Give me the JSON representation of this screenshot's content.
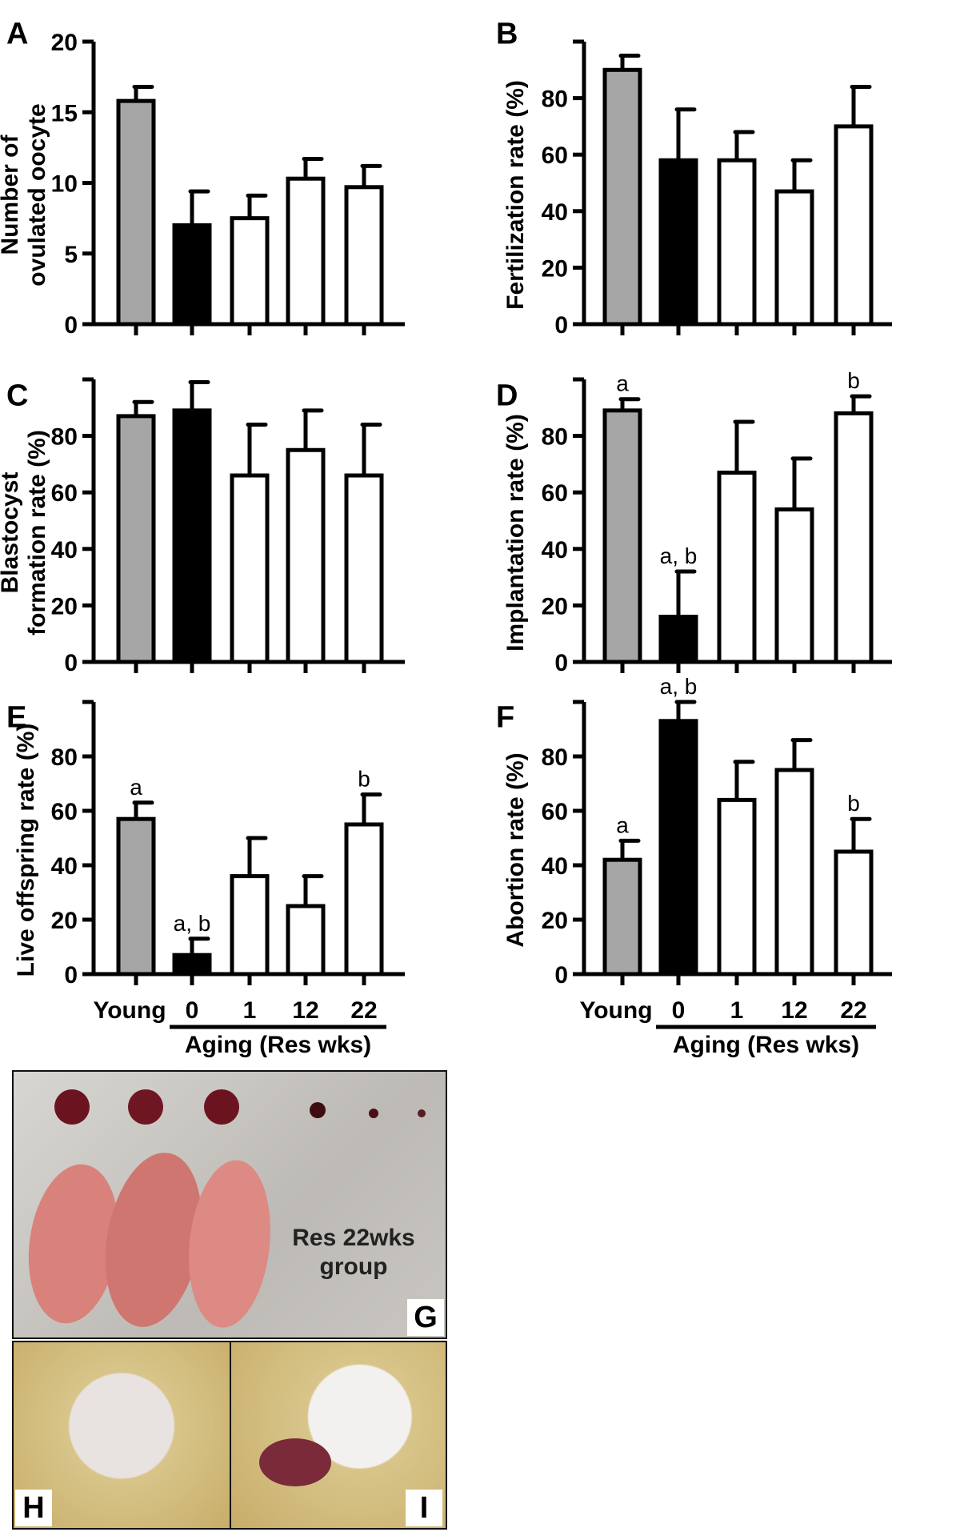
{
  "chart_data": [
    {
      "panel": "A",
      "type": "bar",
      "ylabel": [
        "Number of",
        "ovulated oocyte"
      ],
      "ylim": [
        0,
        20
      ],
      "yticks": [
        0,
        5,
        10,
        15,
        20
      ],
      "categories": [
        "Young",
        "0",
        "1",
        "12",
        "22"
      ],
      "values": [
        15.8,
        7.0,
        7.5,
        10.3,
        9.7
      ],
      "errors": [
        1.0,
        2.4,
        1.6,
        1.4,
        1.5
      ],
      "sig": [
        "",
        "",
        "",
        "",
        ""
      ]
    },
    {
      "panel": "B",
      "type": "bar",
      "ylabel": [
        "Fertilization rate (%)"
      ],
      "ylim": [
        0,
        100
      ],
      "yticks": [
        0,
        20,
        40,
        60,
        80
      ],
      "categories": [
        "Young",
        "0",
        "1",
        "12",
        "22"
      ],
      "values": [
        90,
        58,
        58,
        47,
        70
      ],
      "errors": [
        5,
        18,
        10,
        11,
        14
      ],
      "sig": [
        "",
        "",
        "",
        "",
        ""
      ]
    },
    {
      "panel": "C",
      "type": "bar",
      "ylabel": [
        "Blastocyst",
        "formation rate (%)"
      ],
      "ylim": [
        0,
        100
      ],
      "yticks": [
        0,
        20,
        40,
        60,
        80
      ],
      "categories": [
        "Young",
        "0",
        "1",
        "12",
        "22"
      ],
      "values": [
        87,
        89,
        66,
        75,
        66
      ],
      "errors": [
        5,
        10,
        18,
        14,
        18
      ],
      "sig": [
        "",
        "",
        "",
        "",
        ""
      ]
    },
    {
      "panel": "D",
      "type": "bar",
      "ylabel": [
        "Implantation rate (%)"
      ],
      "ylim": [
        0,
        100
      ],
      "yticks": [
        0,
        20,
        40,
        60,
        80
      ],
      "categories": [
        "Young",
        "0",
        "1",
        "12",
        "22"
      ],
      "values": [
        89,
        16,
        67,
        54,
        88
      ],
      "errors": [
        4,
        16,
        18,
        18,
        6
      ],
      "sig": [
        "a",
        "a, b",
        "",
        "",
        "b"
      ]
    },
    {
      "panel": "E",
      "type": "bar",
      "ylabel": [
        "Live offspring rate (%)"
      ],
      "ylim": [
        0,
        100
      ],
      "yticks": [
        0,
        20,
        40,
        60,
        80
      ],
      "categories": [
        "Young",
        "0",
        "1",
        "12",
        "22"
      ],
      "values": [
        57,
        7,
        36,
        25,
        55
      ],
      "errors": [
        6,
        6,
        14,
        11,
        11
      ],
      "sig": [
        "a",
        "a, b",
        "",
        "",
        "b"
      ]
    },
    {
      "panel": "F",
      "type": "bar",
      "ylabel": [
        "Abortion rate (%)"
      ],
      "ylim": [
        0,
        100
      ],
      "yticks": [
        0,
        20,
        40,
        60,
        80
      ],
      "categories": [
        "Young",
        "0",
        "1",
        "12",
        "22"
      ],
      "values": [
        42,
        93,
        64,
        75,
        45
      ],
      "errors": [
        7,
        7,
        14,
        11,
        12
      ],
      "sig": [
        "a",
        "a, b",
        "",
        "",
        "b"
      ]
    }
  ],
  "xgroup_label": "Aging (Res wks)",
  "bar_colors": [
    "#a6a6a6",
    "#000000",
    "#ffffff",
    "#ffffff",
    "#ffffff"
  ],
  "photos": {
    "g": {
      "label": "G",
      "caption_1": "Res 22wks",
      "caption_2": "group"
    },
    "h": {
      "label": "H"
    },
    "i": {
      "label": "I"
    }
  }
}
